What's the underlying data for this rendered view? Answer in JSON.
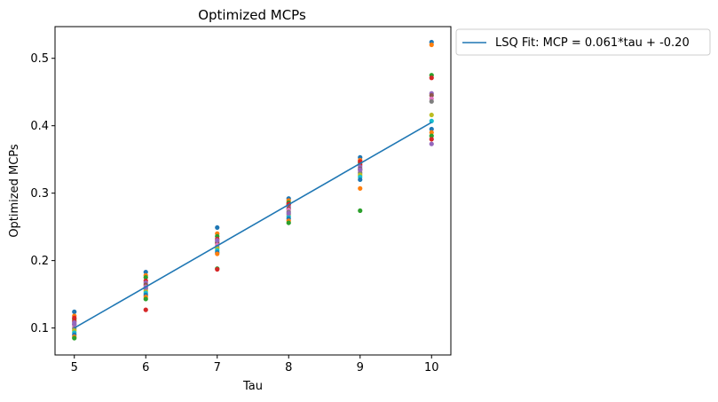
{
  "chart_data": {
    "type": "scatter",
    "title": "Optimized MCPs",
    "xlabel": "Tau",
    "ylabel": "Optimized MCPs",
    "xlim": [
      4.73,
      10.27
    ],
    "ylim": [
      0.06,
      0.547
    ],
    "xticks": [
      5,
      6,
      7,
      8,
      9,
      10
    ],
    "xtick_labels": [
      "5",
      "6",
      "7",
      "8",
      "9",
      "10"
    ],
    "yticks": [
      0.1,
      0.2,
      0.3,
      0.4,
      0.5
    ],
    "ytick_labels": [
      "0.1",
      "0.2",
      "0.3",
      "0.4",
      "0.5"
    ],
    "grid": false,
    "legend_position": "outside-top-right",
    "fit_line": {
      "name": "LSQ Fit: MCP = 0.061*tau + -0.20",
      "color": "#1f77b4",
      "points": [
        [
          5,
          0.1
        ],
        [
          6,
          0.161
        ],
        [
          7,
          0.222
        ],
        [
          8,
          0.283
        ],
        [
          9,
          0.344
        ],
        [
          10,
          0.405
        ]
      ]
    },
    "colors": [
      "#1f77b4",
      "#ff7f0e",
      "#2ca02c",
      "#d62728",
      "#9467bd",
      "#8c564b",
      "#e377c2",
      "#7f7f7f",
      "#bcbd22",
      "#17becf"
    ],
    "scatter": [
      {
        "x": 5,
        "y": [
          0.124,
          0.118,
          0.113,
          0.11,
          0.108,
          0.105,
          0.102,
          0.099,
          0.096,
          0.093,
          0.09,
          0.087,
          0.085,
          0.115,
          0.106
        ]
      },
      {
        "x": 6,
        "y": [
          0.183,
          0.178,
          0.175,
          0.17,
          0.167,
          0.164,
          0.161,
          0.158,
          0.155,
          0.152,
          0.149,
          0.146,
          0.143,
          0.127,
          0.16
        ]
      },
      {
        "x": 7,
        "y": [
          0.249,
          0.24,
          0.236,
          0.232,
          0.228,
          0.226,
          0.223,
          0.22,
          0.218,
          0.215,
          0.212,
          0.21,
          0.188,
          0.187,
          0.23
        ]
      },
      {
        "x": 8,
        "y": [
          0.292,
          0.289,
          0.286,
          0.283,
          0.28,
          0.277,
          0.275,
          0.272,
          0.268,
          0.265,
          0.262,
          0.259,
          0.256,
          0.284,
          0.27
        ]
      },
      {
        "x": 9,
        "y": [
          0.353,
          0.349,
          0.345,
          0.342,
          0.339,
          0.336,
          0.333,
          0.33,
          0.327,
          0.324,
          0.32,
          0.307,
          0.274,
          0.347,
          0.335
        ]
      },
      {
        "x": 10,
        "y": [
          0.524,
          0.52,
          0.475,
          0.471,
          0.448,
          0.445,
          0.44,
          0.436,
          0.416,
          0.407,
          0.395,
          0.39,
          0.385,
          0.38,
          0.373
        ]
      }
    ]
  }
}
